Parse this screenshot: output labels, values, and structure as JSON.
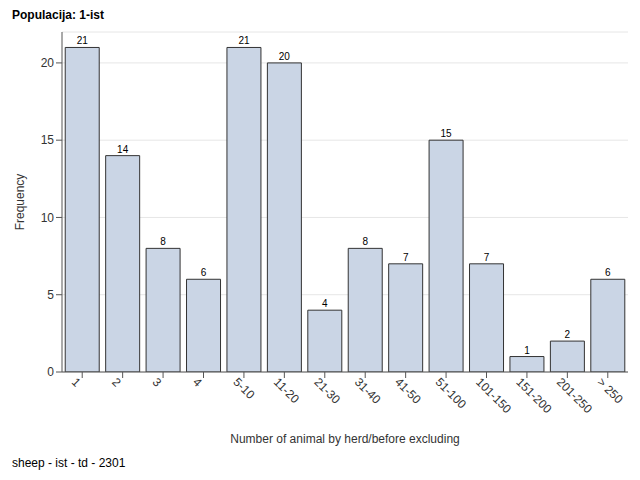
{
  "chart_data": {
    "type": "bar",
    "title": "Populacija: 1-ist",
    "x_label": "Number of animal by herd/before excluding",
    "y_label": "Frequency",
    "annotations": [
      "sheep - ist - td - 2301"
    ],
    "categories": [
      "1",
      "2",
      "3",
      "4",
      "5-10",
      "11-20",
      "21-30",
      "31-40",
      "41-50",
      "51-100",
      "101-150",
      "151-200",
      "201-250",
      "> 250"
    ],
    "values": [
      21,
      14,
      8,
      6,
      21,
      20,
      4,
      8,
      7,
      15,
      7,
      1,
      2,
      6
    ],
    "color": "#cad5e5",
    "ylim": [
      0,
      22
    ],
    "yticks": [
      0,
      5,
      10,
      15,
      20
    ],
    "grid": true,
    "data_labels": true
  }
}
